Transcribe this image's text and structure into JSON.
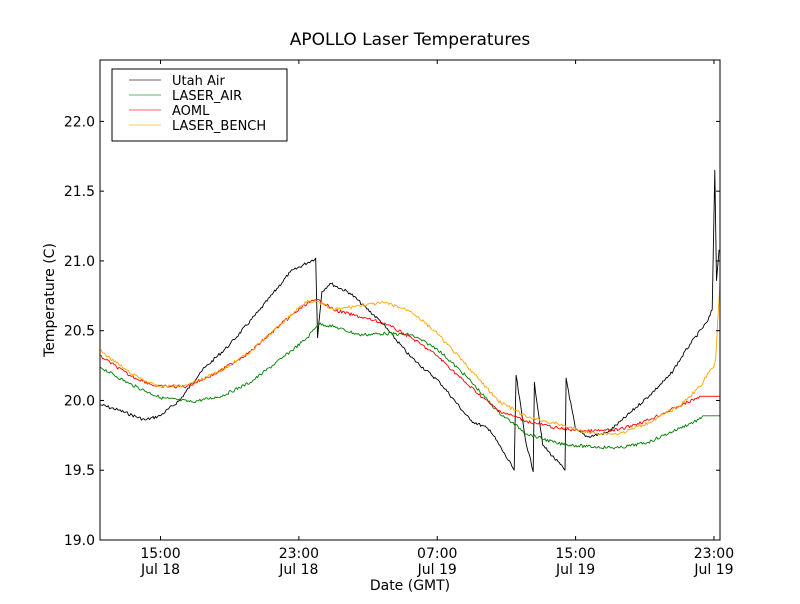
{
  "chart_data": {
    "type": "line",
    "title": "APOLLO Laser Temperatures",
    "xlabel": "Date (GMT)",
    "ylabel": "Temperature (C)",
    "x_units": "hours since Jul 18 00:00 GMT",
    "xlim": [
      11.5,
      47.35
    ],
    "ylim": [
      19.0,
      22.44
    ],
    "grid": false,
    "legend_position": "top-left",
    "x_ticks": [
      {
        "value": 15,
        "line1": "15:00",
        "line2": "Jul 18"
      },
      {
        "value": 23,
        "line1": "23:00",
        "line2": "Jul 18"
      },
      {
        "value": 31,
        "line1": "07:00",
        "line2": "Jul 19"
      },
      {
        "value": 39,
        "line1": "15:00",
        "line2": "Jul 19"
      },
      {
        "value": 47,
        "line1": "23:00",
        "line2": "Jul 19"
      }
    ],
    "y_ticks": [
      {
        "value": 19.0,
        "label": "19.0"
      },
      {
        "value": 19.5,
        "label": "19.5"
      },
      {
        "value": 20.0,
        "label": "20.0"
      },
      {
        "value": 20.5,
        "label": "20.5"
      },
      {
        "value": 21.0,
        "label": "21.0"
      },
      {
        "value": 21.5,
        "label": "21.5"
      },
      {
        "value": 22.0,
        "label": "22.0"
      }
    ],
    "series": [
      {
        "name": "Utah Air",
        "color": "#000000",
        "x": [
          11.5,
          12.6,
          14.1,
          14.97,
          16.1,
          17.28,
          19.0,
          20.75,
          22.5,
          23.97,
          24.08,
          24.33,
          24.8,
          25.95,
          27.7,
          29.4,
          31.15,
          32.9,
          34.05,
          35.45,
          35.56,
          36.1,
          36.55,
          36.62,
          37.1,
          38.39,
          38.45,
          39.0,
          39.7,
          40.85,
          41.7,
          43.3,
          44.45,
          45.6,
          46.65,
          46.9,
          47.05,
          47.15,
          47.3
        ],
        "y": [
          19.97,
          19.93,
          19.86,
          19.89,
          20.0,
          20.2,
          20.4,
          20.65,
          20.92,
          21.02,
          20.45,
          20.78,
          20.84,
          20.77,
          20.57,
          20.32,
          20.13,
          19.86,
          19.79,
          19.5,
          20.18,
          19.72,
          19.49,
          20.13,
          19.68,
          19.5,
          20.16,
          19.79,
          19.74,
          19.77,
          19.86,
          20.04,
          20.18,
          20.4,
          20.57,
          20.65,
          21.65,
          20.86,
          21.08
        ]
      },
      {
        "name": "LASER_AIR",
        "color": "#008000",
        "x": [
          11.5,
          13.2,
          15.0,
          16.8,
          18.5,
          20.2,
          22.0,
          23.5,
          24.1,
          25.0,
          26.5,
          28.0,
          29.5,
          31.0,
          32.7,
          34.5,
          36.2,
          38.0,
          39.7,
          41.5,
          43.2,
          45.0,
          46.25,
          46.35,
          47.35
        ],
        "y": [
          20.24,
          20.12,
          20.02,
          19.99,
          20.03,
          20.13,
          20.3,
          20.45,
          20.55,
          20.53,
          20.47,
          20.48,
          20.47,
          20.37,
          20.17,
          19.92,
          19.76,
          19.69,
          19.67,
          19.66,
          19.7,
          19.8,
          19.87,
          19.89,
          19.89
        ]
      },
      {
        "name": "AOML",
        "color": "#ff0000",
        "x": [
          11.5,
          13.2,
          14.8,
          16.5,
          18.3,
          20.2,
          22.0,
          23.5,
          24.2,
          25.0,
          26.5,
          28.0,
          29.5,
          31.0,
          32.7,
          34.5,
          36.2,
          38.0,
          39.7,
          41.5,
          43.2,
          45.0,
          46.25,
          46.3,
          47.35
        ],
        "y": [
          20.32,
          20.18,
          20.1,
          20.1,
          20.2,
          20.35,
          20.55,
          20.7,
          20.72,
          20.65,
          20.6,
          20.55,
          20.45,
          20.32,
          20.12,
          19.93,
          19.85,
          19.8,
          19.78,
          19.79,
          19.86,
          19.96,
          20.03,
          20.03,
          20.03
        ]
      },
      {
        "name": "LASER_BENCH",
        "color": "#ffa500",
        "x": [
          11.5,
          13.2,
          14.8,
          16.5,
          18.3,
          20.2,
          22.0,
          23.5,
          24.2,
          25.0,
          26.5,
          28.0,
          29.5,
          31.0,
          32.7,
          34.5,
          36.2,
          38.0,
          39.7,
          41.5,
          43.2,
          45.0,
          46.2,
          46.7,
          47.0,
          47.1,
          47.35
        ],
        "y": [
          20.36,
          20.2,
          20.1,
          20.11,
          20.2,
          20.35,
          20.55,
          20.72,
          20.7,
          20.65,
          20.68,
          20.7,
          20.64,
          20.48,
          20.25,
          20.0,
          19.88,
          19.83,
          19.77,
          19.76,
          19.84,
          19.96,
          20.1,
          20.2,
          20.24,
          20.3,
          20.85
        ]
      }
    ]
  }
}
